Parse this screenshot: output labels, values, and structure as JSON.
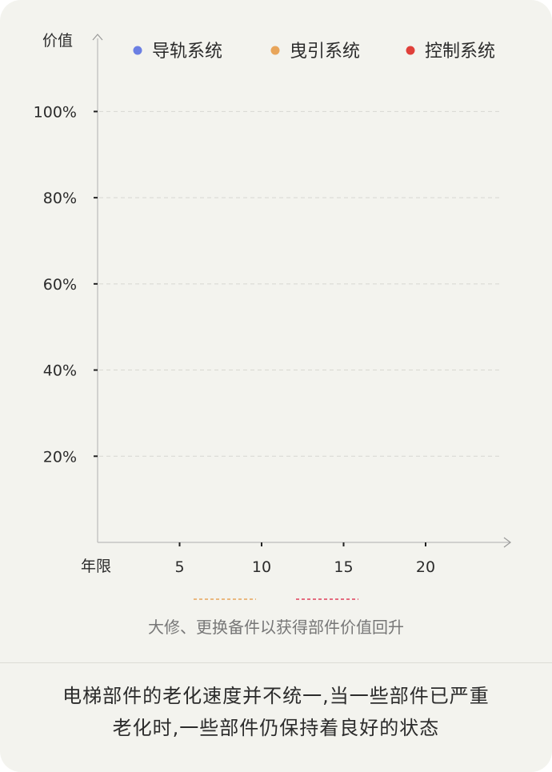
{
  "chart_data": {
    "type": "line",
    "ylabel": "价值",
    "xlabel": "年限",
    "x_ticks": [
      5,
      10,
      15,
      20
    ],
    "y_ticks": [
      "20%",
      "40%",
      "60%",
      "80%",
      "100%"
    ],
    "xlim": [
      0,
      25
    ],
    "ylim": [
      0,
      100
    ],
    "grid": true,
    "legend_position": "top",
    "series": [
      {
        "name": "导轨系统",
        "color": "#6b7fe3",
        "points": []
      },
      {
        "name": "曳引系统",
        "color": "#e8a55a",
        "points": []
      },
      {
        "name": "控制系统",
        "color": "#e0403a",
        "points": []
      }
    ],
    "annotation": {
      "text": "大修、更换备件以获得部件价值回升",
      "dash_colors": [
        "#e8a55a",
        "#e0405a"
      ]
    }
  },
  "footer": {
    "line1": "电梯部件的老化速度并不统一,当一些部件已严重",
    "line2": "老化时,一些部件仍保持着良好的状态"
  },
  "colors": {
    "background": "#f3f3ee",
    "axis": "#bbbbbb",
    "grid": "#d8d8d2",
    "text": "#2b2b2b",
    "muted": "#777777"
  }
}
